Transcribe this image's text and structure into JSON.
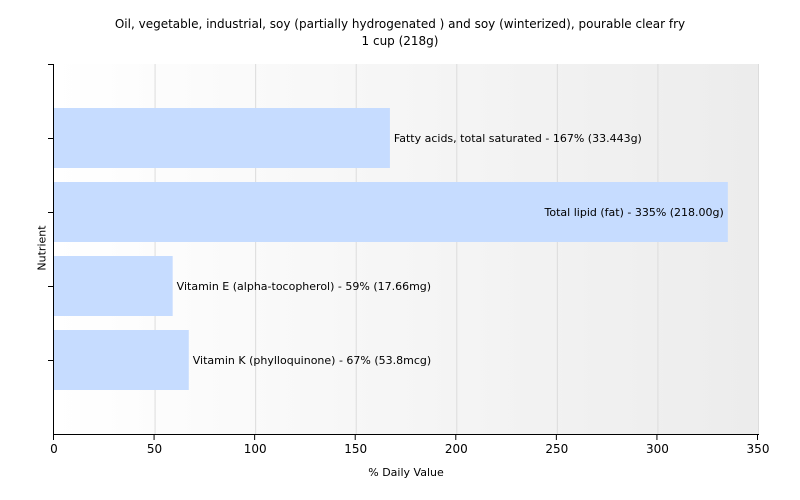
{
  "chart_data": {
    "type": "bar",
    "orientation": "horizontal",
    "title": "Oil, vegetable, industrial, soy (partially hydrogenated ) and soy (winterized), pourable clear fry",
    "subtitle": "1 cup (218g)",
    "xlabel": "% Daily Value",
    "ylabel": "Nutrient",
    "xlim": [
      0,
      350
    ],
    "xticks": [
      0,
      50,
      100,
      150,
      200,
      250,
      300,
      350
    ],
    "grid": true,
    "bar_color": "#c6dcff",
    "bars": [
      {
        "value": 167,
        "label": "Fatty acids, total saturated - 167% (33.443g)",
        "label_position": "outside"
      },
      {
        "value": 335,
        "label": "Total lipid (fat) - 335% (218.00g)",
        "label_position": "inside"
      },
      {
        "value": 59,
        "label": "Vitamin E (alpha-tocopherol) - 59% (17.66mg)",
        "label_position": "outside"
      },
      {
        "value": 67,
        "label": "Vitamin K (phylloquinone) - 67% (53.8mcg)",
        "label_position": "outside"
      }
    ]
  }
}
